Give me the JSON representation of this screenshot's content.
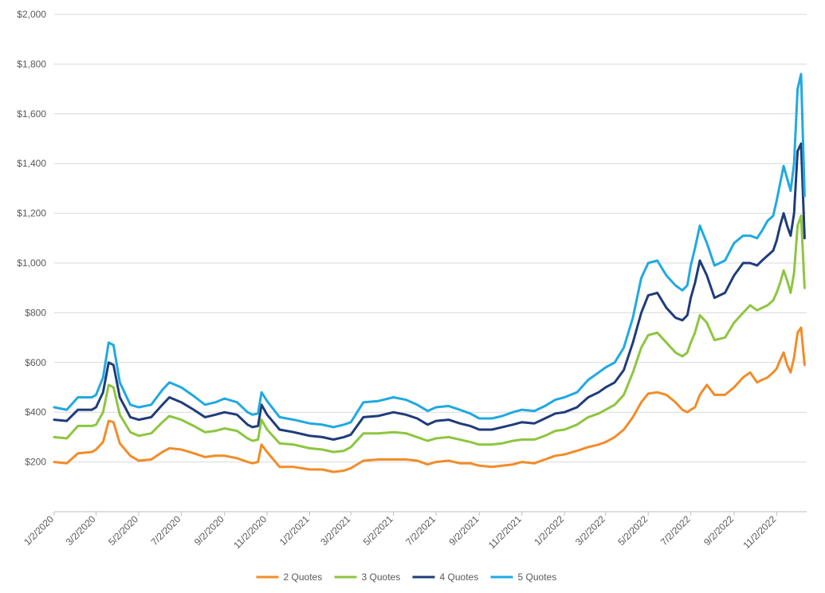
{
  "chart_data": {
    "type": "line",
    "title": "",
    "xlabel": "",
    "ylabel": "",
    "ylim": [
      0,
      2000
    ],
    "y_ticks": [
      {
        "value": 0,
        "label": ""
      },
      {
        "value": 200,
        "label": "$200"
      },
      {
        "value": 400,
        "label": "$400"
      },
      {
        "value": 600,
        "label": "$600"
      },
      {
        "value": 800,
        "label": "$800"
      },
      {
        "value": 1000,
        "label": "$1,000"
      },
      {
        "value": 1200,
        "label": "$1,200"
      },
      {
        "value": 1400,
        "label": "$1,400"
      },
      {
        "value": 1600,
        "label": "$1,600"
      },
      {
        "value": 1800,
        "label": "$1,800"
      },
      {
        "value": 2000,
        "label": "$2,000"
      }
    ],
    "x_tick_labels": [
      "1/2/2020",
      "3/2/2020",
      "5/2/2020",
      "7/2/2020",
      "9/2/2020",
      "11/2/2020",
      "1/2/2021",
      "3/2/2021",
      "5/2/2021",
      "7/2/2021",
      "9/2/2021",
      "11/2/2021",
      "1/2/2022",
      "3/2/2022",
      "5/2/2022",
      "7/2/2022",
      "9/2/2022",
      "11/2/2022"
    ],
    "x_range": [
      "2020-01-02",
      "2022-12-15"
    ],
    "grid": "horizontal",
    "legend_position": "bottom",
    "x": [
      "2020-01-02",
      "2020-01-20",
      "2020-02-05",
      "2020-02-25",
      "2020-03-02",
      "2020-03-12",
      "2020-03-20",
      "2020-03-27",
      "2020-04-05",
      "2020-04-20",
      "2020-05-02",
      "2020-05-20",
      "2020-06-05",
      "2020-06-15",
      "2020-07-02",
      "2020-07-20",
      "2020-08-05",
      "2020-08-20",
      "2020-09-02",
      "2020-09-20",
      "2020-10-05",
      "2020-10-12",
      "2020-10-20",
      "2020-10-25",
      "2020-11-02",
      "2020-11-20",
      "2020-12-10",
      "2021-01-02",
      "2021-01-20",
      "2021-02-05",
      "2021-02-20",
      "2021-03-02",
      "2021-03-20",
      "2021-04-10",
      "2021-05-02",
      "2021-05-20",
      "2021-06-05",
      "2021-06-20",
      "2021-07-02",
      "2021-07-20",
      "2021-08-05",
      "2021-08-20",
      "2021-09-02",
      "2021-09-20",
      "2021-10-05",
      "2021-10-20",
      "2021-11-02",
      "2021-11-20",
      "2021-12-05",
      "2021-12-20",
      "2022-01-02",
      "2022-01-20",
      "2022-02-05",
      "2022-02-20",
      "2022-03-02",
      "2022-03-15",
      "2022-03-28",
      "2022-04-10",
      "2022-04-22",
      "2022-05-02",
      "2022-05-15",
      "2022-05-28",
      "2022-06-10",
      "2022-06-20",
      "2022-06-27",
      "2022-07-02",
      "2022-07-08",
      "2022-07-15",
      "2022-07-25",
      "2022-08-05",
      "2022-08-20",
      "2022-09-02",
      "2022-09-15",
      "2022-09-25",
      "2022-10-05",
      "2022-10-12",
      "2022-10-20",
      "2022-10-28",
      "2022-11-02",
      "2022-11-07",
      "2022-11-12",
      "2022-11-17",
      "2022-11-22",
      "2022-11-27",
      "2022-12-02",
      "2022-12-07",
      "2022-12-12"
    ],
    "series": [
      {
        "name": "2 Quotes",
        "color": "#F28C28",
        "values": [
          200,
          195,
          235,
          240,
          250,
          280,
          365,
          360,
          275,
          225,
          205,
          210,
          240,
          255,
          250,
          235,
          220,
          225,
          225,
          215,
          200,
          195,
          200,
          270,
          240,
          180,
          180,
          170,
          170,
          160,
          165,
          175,
          205,
          210,
          210,
          210,
          205,
          190,
          200,
          205,
          195,
          195,
          185,
          180,
          185,
          190,
          200,
          195,
          210,
          225,
          230,
          245,
          260,
          270,
          280,
          300,
          330,
          380,
          440,
          475,
          480,
          470,
          440,
          410,
          400,
          410,
          420,
          470,
          510,
          470,
          470,
          500,
          540,
          560,
          520,
          530,
          540,
          560,
          575,
          610,
          640,
          590,
          560,
          620,
          720,
          740,
          590
        ]
      },
      {
        "name": "3 Quotes",
        "color": "#8DC63F",
        "values": [
          300,
          295,
          345,
          345,
          350,
          400,
          510,
          500,
          390,
          320,
          305,
          315,
          360,
          385,
          370,
          345,
          320,
          325,
          335,
          325,
          295,
          285,
          290,
          370,
          330,
          275,
          270,
          255,
          250,
          240,
          245,
          260,
          315,
          315,
          320,
          315,
          300,
          285,
          295,
          300,
          290,
          280,
          270,
          270,
          275,
          285,
          290,
          290,
          305,
          325,
          330,
          350,
          380,
          395,
          410,
          430,
          470,
          560,
          660,
          710,
          720,
          680,
          640,
          625,
          640,
          680,
          720,
          790,
          760,
          690,
          700,
          760,
          800,
          830,
          810,
          820,
          830,
          850,
          880,
          920,
          970,
          930,
          880,
          960,
          1150,
          1190,
          900
        ]
      },
      {
        "name": "4 Quotes",
        "color": "#1F3C7A",
        "values": [
          370,
          365,
          410,
          410,
          420,
          480,
          600,
          590,
          460,
          380,
          370,
          380,
          430,
          460,
          440,
          410,
          380,
          390,
          400,
          390,
          350,
          340,
          345,
          430,
          390,
          330,
          320,
          305,
          300,
          290,
          300,
          310,
          380,
          385,
          400,
          390,
          375,
          350,
          365,
          370,
          355,
          345,
          330,
          330,
          340,
          350,
          360,
          355,
          375,
          395,
          400,
          420,
          460,
          480,
          500,
          520,
          570,
          680,
          800,
          870,
          880,
          820,
          780,
          770,
          790,
          860,
          920,
          1010,
          950,
          860,
          880,
          950,
          1000,
          1000,
          990,
          1010,
          1030,
          1050,
          1090,
          1150,
          1200,
          1150,
          1110,
          1200,
          1450,
          1480,
          1100
        ]
      },
      {
        "name": "5 Quotes",
        "color": "#20A9E1",
        "values": [
          420,
          410,
          460,
          460,
          470,
          540,
          680,
          670,
          520,
          430,
          420,
          430,
          490,
          520,
          500,
          465,
          430,
          440,
          455,
          440,
          400,
          390,
          395,
          480,
          445,
          380,
          370,
          355,
          350,
          340,
          350,
          360,
          440,
          445,
          460,
          450,
          430,
          405,
          420,
          425,
          410,
          395,
          375,
          375,
          385,
          400,
          410,
          405,
          425,
          450,
          460,
          480,
          530,
          560,
          580,
          600,
          660,
          780,
          940,
          1000,
          1010,
          950,
          910,
          890,
          910,
          990,
          1060,
          1150,
          1080,
          990,
          1010,
          1080,
          1110,
          1110,
          1100,
          1130,
          1170,
          1190,
          1250,
          1320,
          1390,
          1340,
          1290,
          1400,
          1700,
          1760,
          1270
        ]
      }
    ]
  }
}
